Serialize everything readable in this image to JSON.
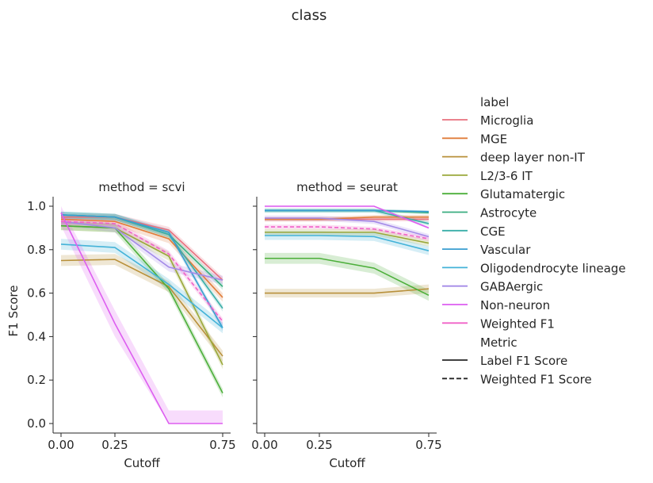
{
  "chart_data": {
    "type": "line",
    "title": "class",
    "ylabel": "F1 Score",
    "xlabel": "Cutoff",
    "x": [
      0.0,
      0.25,
      0.5,
      0.75
    ],
    "xticks": [
      "0.00",
      "0.25",
      "0.75"
    ],
    "xtick_values": [
      0.0,
      0.25,
      0.75
    ],
    "yticks": [
      "0.0",
      "0.2",
      "0.4",
      "0.6",
      "0.8",
      "1.0"
    ],
    "ytick_values": [
      0.0,
      0.2,
      0.4,
      0.6,
      0.8,
      1.0
    ],
    "xlim": [
      -0.02,
      0.77
    ],
    "ylim": [
      -0.05,
      1.05
    ],
    "grid": false,
    "legend": {
      "placement": "right",
      "hue_title": "label",
      "style_title": "Metric",
      "styles": [
        {
          "name": "Label F1 Score",
          "dash": "solid"
        },
        {
          "name": "Weighted F1 Score",
          "dash": "dashed"
        }
      ]
    },
    "series_meta": [
      {
        "name": "Microglia",
        "color": "#e8707e"
      },
      {
        "name": "MGE",
        "color": "#e07d3a"
      },
      {
        "name": "deep layer non-IT",
        "color": "#b8903a"
      },
      {
        "name": "L2/3-6 IT",
        "color": "#9aa83a"
      },
      {
        "name": "Glutamatergic",
        "color": "#4caf3a"
      },
      {
        "name": "Astrocyte",
        "color": "#3aae80"
      },
      {
        "name": "CGE",
        "color": "#3aaea8"
      },
      {
        "name": "Vascular",
        "color": "#3a9ed0"
      },
      {
        "name": "Oligodendrocyte lineage",
        "color": "#44b3d8"
      },
      {
        "name": "GABAergic",
        "color": "#a48ae8"
      },
      {
        "name": "Non-neuron",
        "color": "#dd5ef0"
      },
      {
        "name": "Weighted F1",
        "color": "#f062c8"
      }
    ],
    "panels": [
      {
        "title": "method = scvi",
        "series": [
          {
            "name": "Microglia",
            "values": [
              0.95,
              0.95,
              0.89,
              0.66
            ],
            "band": 0.015
          },
          {
            "name": "MGE",
            "values": [
              0.94,
              0.93,
              0.85,
              0.58
            ],
            "band": 0.02
          },
          {
            "name": "deep layer non-IT",
            "values": [
              0.75,
              0.755,
              0.63,
              0.31
            ],
            "band": 0.025
          },
          {
            "name": "L2/3-6 IT",
            "values": [
              0.91,
              0.9,
              0.77,
              0.27
            ],
            "band": 0.02
          },
          {
            "name": "Glutamatergic",
            "values": [
              0.91,
              0.9,
              0.62,
              0.14
            ],
            "band": 0.02
          },
          {
            "name": "Astrocyte",
            "values": [
              0.96,
              0.95,
              0.87,
              0.63
            ],
            "band": 0.015
          },
          {
            "name": "CGE",
            "values": [
              0.96,
              0.95,
              0.87,
              0.53
            ],
            "band": 0.015
          },
          {
            "name": "Vascular",
            "values": [
              0.96,
              0.95,
              0.88,
              0.44
            ],
            "band": 0.015
          },
          {
            "name": "Oligodendrocyte lineage",
            "values": [
              0.825,
              0.81,
              0.64,
              0.44
            ],
            "band": 0.025
          },
          {
            "name": "GABAergic",
            "values": [
              0.93,
              0.9,
              0.72,
              0.66
            ],
            "band": 0.02
          },
          {
            "name": "Non-neuron",
            "values": [
              0.97,
              0.46,
              0.0,
              0.0
            ],
            "band": 0.06
          },
          {
            "name": "Weighted F1",
            "values": [
              0.93,
              0.92,
              0.78,
              0.47
            ],
            "band": 0.015,
            "dash": true
          }
        ]
      },
      {
        "title": "method = seurat",
        "series": [
          {
            "name": "Microglia",
            "values": [
              0.94,
              0.94,
              0.94,
              0.94
            ],
            "band": 0.01
          },
          {
            "name": "MGE",
            "values": [
              0.94,
              0.94,
              0.95,
              0.95
            ],
            "band": 0.01
          },
          {
            "name": "deep layer non-IT",
            "values": [
              0.6,
              0.6,
              0.6,
              0.62
            ],
            "band": 0.02
          },
          {
            "name": "L2/3-6 IT",
            "values": [
              0.88,
              0.88,
              0.88,
              0.83
            ],
            "band": 0.015
          },
          {
            "name": "Glutamatergic",
            "values": [
              0.76,
              0.76,
              0.715,
              0.59
            ],
            "band": 0.025
          },
          {
            "name": "Astrocyte",
            "values": [
              0.98,
              0.98,
              0.98,
              0.97
            ],
            "band": 0.008
          },
          {
            "name": "CGE",
            "values": [
              0.98,
              0.98,
              0.98,
              0.92
            ],
            "band": 0.01
          },
          {
            "name": "Vascular",
            "values": [
              0.98,
              0.98,
              0.98,
              0.975
            ],
            "band": 0.006
          },
          {
            "name": "Oligodendrocyte lineage",
            "values": [
              0.865,
              0.865,
              0.86,
              0.795
            ],
            "band": 0.02
          },
          {
            "name": "GABAergic",
            "values": [
              0.945,
              0.945,
              0.93,
              0.86
            ],
            "band": 0.012
          },
          {
            "name": "Non-neuron",
            "values": [
              1.0,
              1.0,
              1.0,
              0.9
            ],
            "band": 0.005
          },
          {
            "name": "Weighted F1",
            "values": [
              0.905,
              0.905,
              0.895,
              0.85
            ],
            "band": 0.01,
            "dash": true
          }
        ]
      }
    ]
  }
}
